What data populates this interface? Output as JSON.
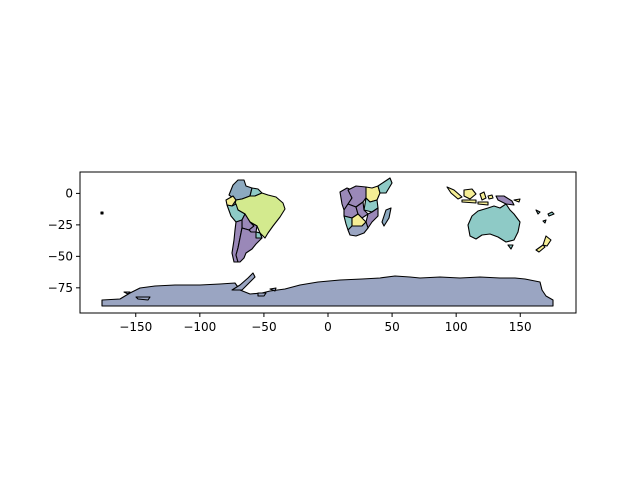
{
  "map": {
    "xaxis": {
      "ticks": [
        -150,
        -100,
        -50,
        0,
        50,
        100,
        150
      ],
      "tick_labels": [
        "−150",
        "−100",
        "−50",
        "0",
        "50",
        "100",
        "150"
      ]
    },
    "yaxis": {
      "ticks": [
        0,
        -25,
        -50,
        -75
      ],
      "tick_labels": [
        "0",
        "−25",
        "−50",
        "−75"
      ]
    },
    "xlim": [
      -193.5,
      193.5
    ],
    "ylim": [
      -95,
      17
    ],
    "colors": {
      "antarctica": "#9aa5c2",
      "teal": "#8ecac6",
      "purple": "#9a88b8",
      "yellow": "#f5ee95",
      "lime": "#d3ea8e",
      "steel": "#8ca9c0",
      "frame": "#000000"
    }
  }
}
